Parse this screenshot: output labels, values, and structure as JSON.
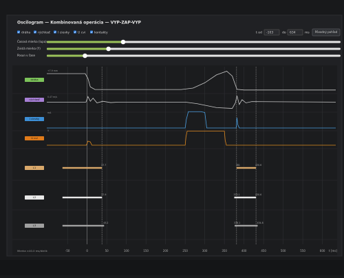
{
  "header": {
    "title": "Oscilogram — Kombinovaná operácia — VYP-ZAP-VYP"
  },
  "toggles": [
    "dráha",
    "rýchlosť",
    "I cievky",
    "U cvi",
    "kontakty"
  ],
  "range": {
    "from_label": "t od",
    "to_label": "do",
    "unit": "ms",
    "reset": "Pôvodný pohľad"
  },
  "sliders": [
    {
      "label": "Časová mierka (lupa)",
      "value": 0.26
    },
    {
      "label": "Zvislá mierka (Y)",
      "value": 0.21
    },
    {
      "label": "Posun v čase",
      "value": 0.13
    }
  ],
  "chart_data": {
    "type": "oscillogram",
    "xlim": [
      -103,
      634
    ],
    "xticks": [
      -50,
      0,
      50,
      100,
      150,
      200,
      250,
      300,
      350,
      400,
      450,
      500,
      550,
      600
    ],
    "x_label": "t [ms]",
    "footer": "Mierka ×40.0 ms/dielik",
    "grid": true,
    "cursors": [
      0,
      37.7,
      381,
      430.6
    ],
    "traces": [
      {
        "name": "dráha",
        "note": "+7.9 mm",
        "color": "#c8c8c8",
        "tag_color": "#7cc35a",
        "x": [
          -103,
          -5,
          2,
          8,
          20,
          240,
          270,
          300,
          330,
          356,
          370,
          382,
          400,
          634
        ],
        "values": [
          0.8,
          0.8,
          0.6,
          0.25,
          0.14,
          0.14,
          0.2,
          0.42,
          0.75,
          0.9,
          0.7,
          0.15,
          0.12,
          0.12
        ]
      },
      {
        "name": "rýchlosť",
        "note": "0.47 m/s",
        "color": "#c8c8c8",
        "tag_color": "#a77fd6",
        "x": [
          -103,
          -3,
          2,
          8,
          15,
          25,
          40,
          60,
          80,
          250,
          280,
          330,
          370,
          378,
          382,
          388,
          395,
          405,
          420,
          634
        ],
        "values": [
          0.55,
          0.55,
          0.9,
          0.6,
          0.8,
          0.5,
          0.6,
          0.52,
          0.55,
          0.55,
          0.45,
          0.2,
          0.15,
          0.5,
          0.95,
          0.4,
          0.7,
          0.5,
          0.58,
          0.55
        ]
      },
      {
        "name": "I cievky",
        "note": "mA",
        "color": "#4a9ee0",
        "tag_color": "#3d8fd6",
        "x": [
          -103,
          250,
          253,
          258,
          290,
          300,
          305,
          375,
          380,
          382,
          384,
          388,
          634
        ],
        "values": [
          0,
          0,
          0.5,
          0.95,
          0.95,
          0.9,
          0,
          0,
          0,
          0.6,
          0.2,
          0,
          0
        ]
      },
      {
        "name": "U cvi",
        "note": "V",
        "color": "#e08a1e",
        "tag_color": "#e07b1a",
        "x": [
          -103,
          -2,
          2,
          8,
          12,
          250,
          252,
          255,
          350,
          352,
          355,
          634
        ],
        "values": [
          0,
          0,
          0.25,
          0.2,
          0,
          0,
          0.5,
          0.85,
          0.85,
          0.3,
          0,
          0
        ]
      }
    ],
    "contacts": [
      {
        "name": "L1",
        "color": "#d9a86a",
        "segments": [
          [
            -63,
            37.7
          ],
          [
            381,
            430.6
          ]
        ]
      },
      {
        "name": "L2",
        "color": "#e8e8e8",
        "segments": [
          [
            -63,
            37.9
          ],
          [
            375.1,
            430.6
          ]
        ]
      },
      {
        "name": "L3",
        "color": "#a0a0a0",
        "segments": [
          [
            -63,
            43.2
          ],
          [
            376.1,
            434.8
          ]
        ]
      }
    ]
  }
}
